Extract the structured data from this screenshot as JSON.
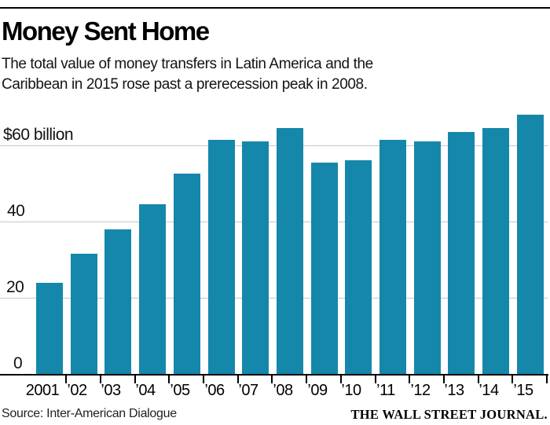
{
  "header": {
    "title": "Money Sent Home",
    "subtitle_line1": "The total value of money transfers in Latin America and the",
    "subtitle_line2": "Caribbean in 2015 rose past a prerecession peak in 2008."
  },
  "chart_data": {
    "type": "bar",
    "title": "Money Sent Home",
    "categories": [
      "2001",
      "’02",
      "’03",
      "’04",
      "’05",
      "’06",
      "’07",
      "’08",
      "’09",
      "’10",
      "’11",
      "’12",
      "’13",
      "’14",
      "’15"
    ],
    "values": [
      24,
      31.5,
      38,
      44.5,
      52.5,
      61.5,
      61,
      64.5,
      55.5,
      56,
      61.5,
      61,
      63.5,
      64.5,
      68
    ],
    "unit": "billions of U.S. dollars",
    "xlabel": "",
    "ylabel": "",
    "yticks": [
      0,
      20,
      40,
      60
    ],
    "ytick_labels": [
      "0",
      "20",
      "40",
      "$60 billion"
    ],
    "ylim": [
      0,
      70
    ],
    "grid": true,
    "legend": "none"
  },
  "footer": {
    "source": "Source: Inter-American Dialogue",
    "attribution": "THE WALL STREET JOURNAL."
  },
  "colors": {
    "bar": "#1587ab",
    "gridline": "#c7c7c7",
    "axis": "#000000",
    "text": "#141414"
  }
}
